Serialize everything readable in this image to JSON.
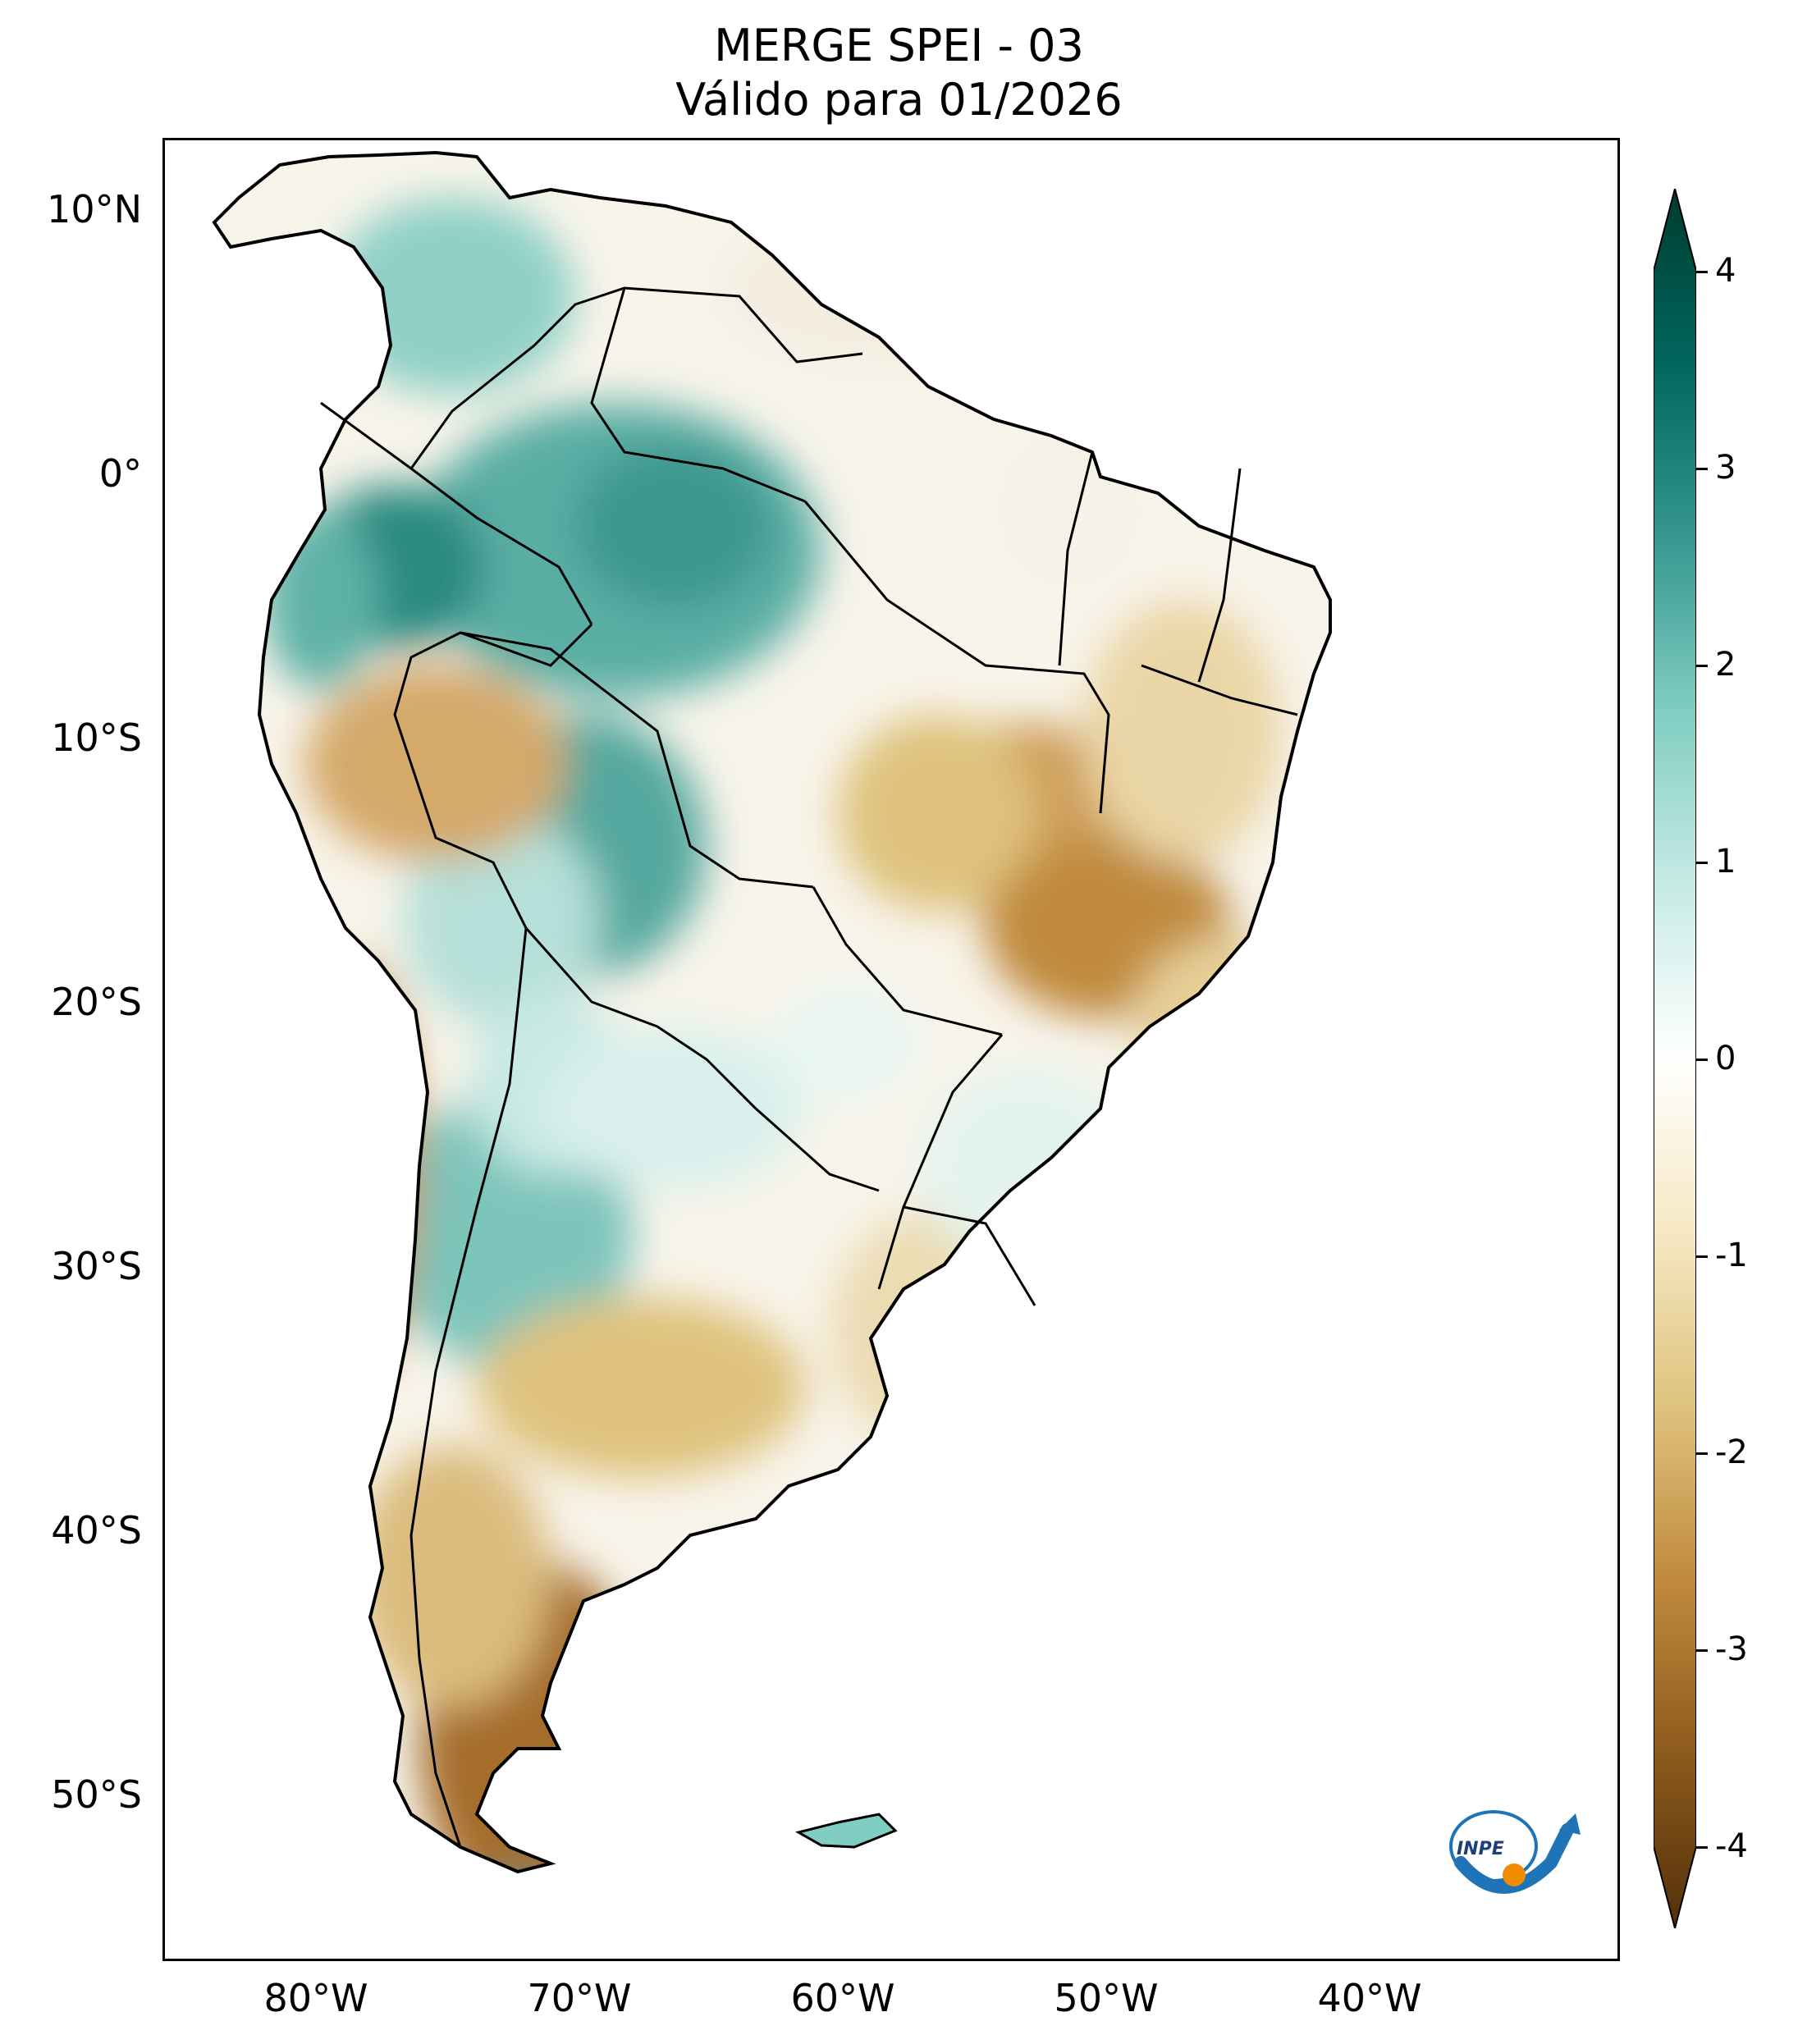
{
  "title": "MERGE   SPEI - 03",
  "subtitle": "Válido para 01/2026",
  "lat_labels": [
    "10°N",
    "0°",
    "10°S",
    "20°S",
    "30°S",
    "40°S",
    "50°S"
  ],
  "lon_labels": [
    "80°W",
    "70°W",
    "60°W",
    "50°W",
    "40°W"
  ],
  "colorbar": {
    "ticks": [
      "4",
      "3",
      "2",
      "1",
      "0",
      "-1",
      "-2",
      "-3",
      "-4"
    ],
    "min": -4,
    "max": 4,
    "colors": [
      "#54300a",
      "#8c5a1c",
      "#c08a3e",
      "#dfc27d",
      "#f6e8c3",
      "#ffffff",
      "#c7eae5",
      "#80cdc1",
      "#35978f",
      "#01665e",
      "#003c30"
    ]
  },
  "logo_text": "INPE"
}
